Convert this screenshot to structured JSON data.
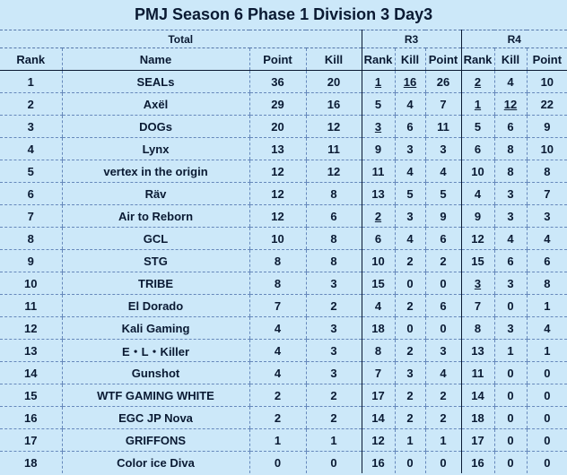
{
  "title": "PMJ Season 6  Phase 1  Division 3  Day3",
  "groups": {
    "total": "Total",
    "r3": "R3",
    "r4": "R4"
  },
  "columns": {
    "rank": "Rank",
    "name": "Name",
    "point": "Point",
    "kill": "Kill",
    "r3_rank": "Rank",
    "r3_kill": "Kill",
    "r3_point": "Point",
    "r4_rank": "Rank",
    "r4_kill": "Kill",
    "r4_point": "Point"
  },
  "rows": [
    {
      "rank": "1",
      "name": "SEALs",
      "point": "36",
      "kill": "20",
      "r3_rank": "1",
      "r3_kill": "16",
      "r3_point": "26",
      "r4_rank": "2",
      "r4_kill": "4",
      "r4_point": "10",
      "u": [
        "r3_rank",
        "r3_kill",
        "r4_rank"
      ]
    },
    {
      "rank": "2",
      "name": "Axël",
      "point": "29",
      "kill": "16",
      "r3_rank": "5",
      "r3_kill": "4",
      "r3_point": "7",
      "r4_rank": "1",
      "r4_kill": "12",
      "r4_point": "22",
      "u": [
        "r4_rank",
        "r4_kill"
      ]
    },
    {
      "rank": "3",
      "name": "DOGs",
      "point": "20",
      "kill": "12",
      "r3_rank": "3",
      "r3_kill": "6",
      "r3_point": "11",
      "r4_rank": "5",
      "r4_kill": "6",
      "r4_point": "9",
      "u": [
        "r3_rank"
      ]
    },
    {
      "rank": "4",
      "name": "Lynx",
      "point": "13",
      "kill": "11",
      "r3_rank": "9",
      "r3_kill": "3",
      "r3_point": "3",
      "r4_rank": "6",
      "r4_kill": "8",
      "r4_point": "10",
      "u": []
    },
    {
      "rank": "5",
      "name": "vertex in the origin",
      "point": "12",
      "kill": "12",
      "r3_rank": "11",
      "r3_kill": "4",
      "r3_point": "4",
      "r4_rank": "10",
      "r4_kill": "8",
      "r4_point": "8",
      "u": []
    },
    {
      "rank": "6",
      "name": "Räv",
      "point": "12",
      "kill": "8",
      "r3_rank": "13",
      "r3_kill": "5",
      "r3_point": "5",
      "r4_rank": "4",
      "r4_kill": "3",
      "r4_point": "7",
      "u": []
    },
    {
      "rank": "7",
      "name": "Air to Reborn",
      "point": "12",
      "kill": "6",
      "r3_rank": "2",
      "r3_kill": "3",
      "r3_point": "9",
      "r4_rank": "9",
      "r4_kill": "3",
      "r4_point": "3",
      "u": [
        "r3_rank"
      ]
    },
    {
      "rank": "8",
      "name": "GCL",
      "point": "10",
      "kill": "8",
      "r3_rank": "6",
      "r3_kill": "4",
      "r3_point": "6",
      "r4_rank": "12",
      "r4_kill": "4",
      "r4_point": "4",
      "u": []
    },
    {
      "rank": "9",
      "name": "STG",
      "point": "8",
      "kill": "8",
      "r3_rank": "10",
      "r3_kill": "2",
      "r3_point": "2",
      "r4_rank": "15",
      "r4_kill": "6",
      "r4_point": "6",
      "u": []
    },
    {
      "rank": "10",
      "name": "TRIBE",
      "point": "8",
      "kill": "3",
      "r3_rank": "15",
      "r3_kill": "0",
      "r3_point": "0",
      "r4_rank": "3",
      "r4_kill": "3",
      "r4_point": "8",
      "u": [
        "r4_rank"
      ]
    },
    {
      "rank": "11",
      "name": "El Dorado",
      "point": "7",
      "kill": "2",
      "r3_rank": "4",
      "r3_kill": "2",
      "r3_point": "6",
      "r4_rank": "7",
      "r4_kill": "0",
      "r4_point": "1",
      "u": []
    },
    {
      "rank": "12",
      "name": "Kali Gaming",
      "point": "4",
      "kill": "3",
      "r3_rank": "18",
      "r3_kill": "0",
      "r3_point": "0",
      "r4_rank": "8",
      "r4_kill": "3",
      "r4_point": "4",
      "u": []
    },
    {
      "rank": "13",
      "name": "E・L・Killer",
      "point": "4",
      "kill": "3",
      "r3_rank": "8",
      "r3_kill": "2",
      "r3_point": "3",
      "r4_rank": "13",
      "r4_kill": "1",
      "r4_point": "1",
      "u": []
    },
    {
      "rank": "14",
      "name": "Gunshot",
      "point": "4",
      "kill": "3",
      "r3_rank": "7",
      "r3_kill": "3",
      "r3_point": "4",
      "r4_rank": "11",
      "r4_kill": "0",
      "r4_point": "0",
      "u": []
    },
    {
      "rank": "15",
      "name": "WTF GAMING WHITE",
      "point": "2",
      "kill": "2",
      "r3_rank": "17",
      "r3_kill": "2",
      "r3_point": "2",
      "r4_rank": "14",
      "r4_kill": "0",
      "r4_point": "0",
      "u": []
    },
    {
      "rank": "16",
      "name": "EGC JP Nova",
      "point": "2",
      "kill": "2",
      "r3_rank": "14",
      "r3_kill": "2",
      "r3_point": "2",
      "r4_rank": "18",
      "r4_kill": "0",
      "r4_point": "0",
      "u": []
    },
    {
      "rank": "17",
      "name": "GRIFFONS",
      "point": "1",
      "kill": "1",
      "r3_rank": "12",
      "r3_kill": "1",
      "r3_point": "1",
      "r4_rank": "17",
      "r4_kill": "0",
      "r4_point": "0",
      "u": []
    },
    {
      "rank": "18",
      "name": "Color ice Diva",
      "point": "0",
      "kill": "0",
      "r3_rank": "16",
      "r3_kill": "0",
      "r3_point": "0",
      "r4_rank": "16",
      "r4_kill": "0",
      "r4_point": "0",
      "u": []
    }
  ]
}
